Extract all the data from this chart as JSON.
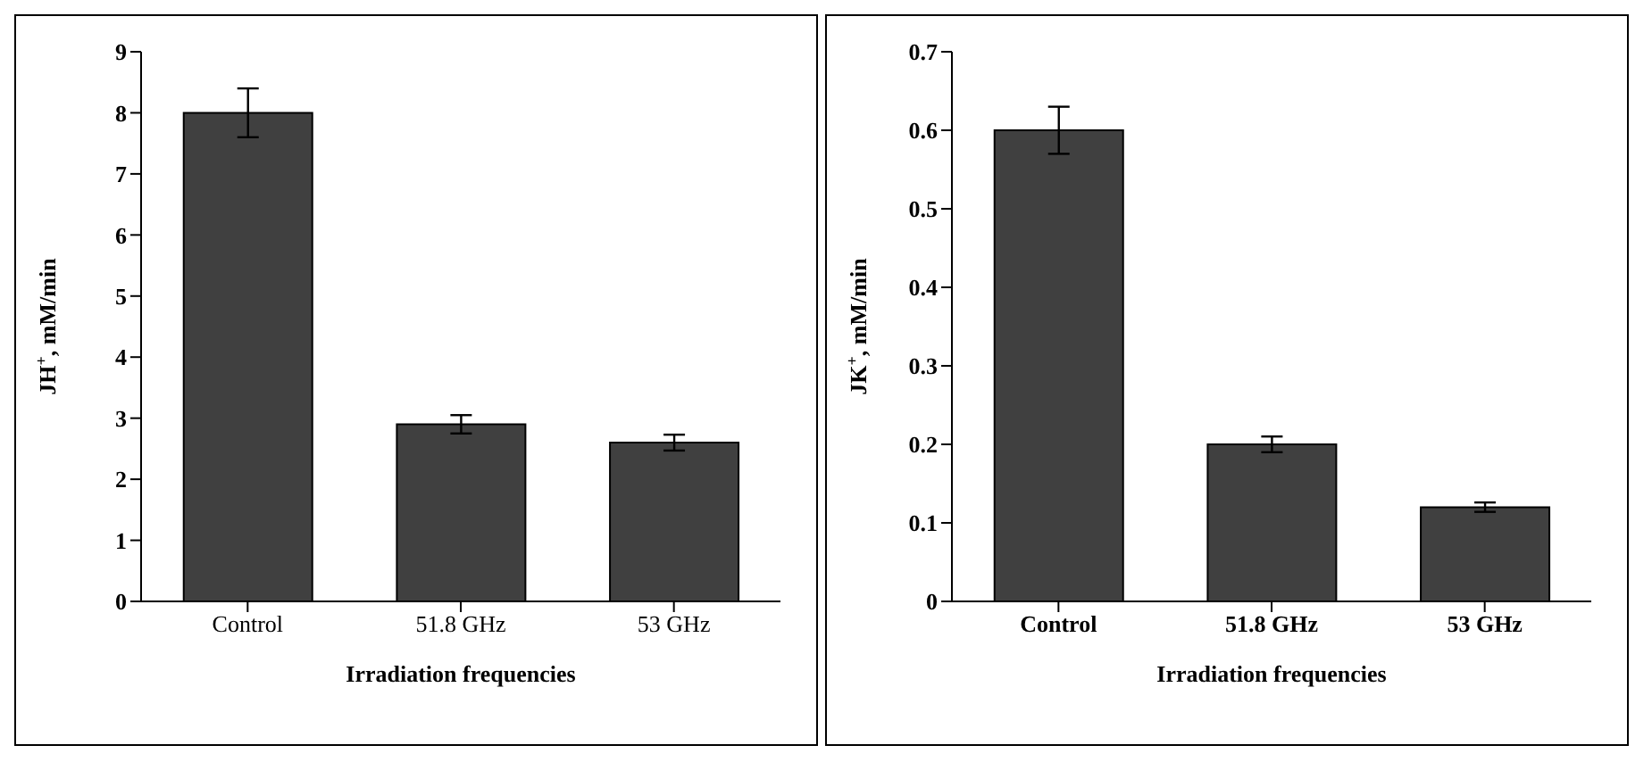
{
  "chart_data": [
    {
      "type": "bar",
      "categories": [
        "Control",
        "51.8 GHz",
        "53 GHz"
      ],
      "values": [
        8,
        2.9,
        2.6
      ],
      "errors": [
        0.4,
        0.15,
        0.13
      ],
      "color": "#404040",
      "ylim": [
        0,
        9
      ],
      "yticks": [
        0,
        1,
        2,
        3,
        4,
        5,
        6,
        7,
        8,
        9
      ],
      "ylabel": "JH$^{+}$, mM/min",
      "xlabel": "Irradiation frequencies",
      "grid": false,
      "legend": false
    },
    {
      "type": "bar",
      "categories": [
        "Control",
        "51.8 GHz",
        "53 GHz"
      ],
      "values": [
        0.6,
        0.2,
        0.12
      ],
      "errors": [
        0.03,
        0.01,
        0.006
      ],
      "color": "#404040",
      "ylim": [
        0,
        0.7
      ],
      "yticks": [
        0,
        0.1,
        0.2,
        0.3,
        0.4,
        0.5,
        0.6,
        0.7
      ],
      "ylabel": "JK$^{+}$, mM/min",
      "xlabel": "Irradiation frequencies",
      "grid": false,
      "legend": false
    }
  ]
}
